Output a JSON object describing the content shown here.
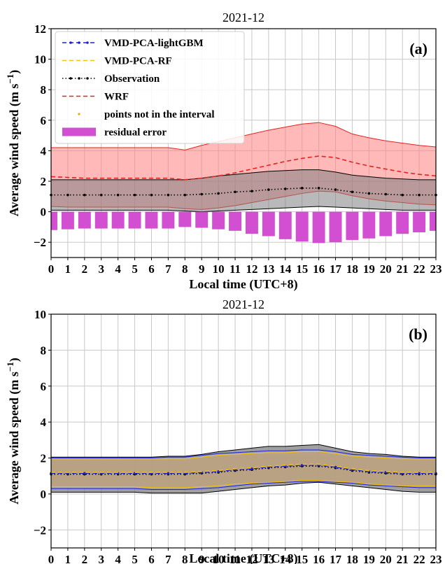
{
  "chart_data": [
    {
      "type": "line",
      "panel_label": "(a)",
      "title": "2021-12",
      "xlabel": "Local time (UTC+8)",
      "ylabel": "Average wind speed (m s",
      "ylabel_sup": "−1",
      "ylabel_tail": ")",
      "xlim": [
        0,
        23
      ],
      "ylim": [
        -3,
        12
      ],
      "yticks": [
        -2,
        0,
        2,
        4,
        6,
        8,
        10,
        12
      ],
      "x": [
        0,
        1,
        2,
        3,
        4,
        5,
        6,
        7,
        8,
        9,
        10,
        11,
        12,
        13,
        14,
        15,
        16,
        17,
        18,
        19,
        20,
        21,
        22,
        23
      ],
      "x_ticklabels": [
        "0",
        "1",
        "2",
        "3",
        "4",
        "5",
        "6",
        "7",
        "8",
        "9",
        "10",
        "11",
        "12",
        "13",
        "14",
        "15",
        "16",
        "17",
        "18",
        "19",
        "20",
        "21",
        "22",
        "23"
      ],
      "grid": true,
      "legend": {
        "placement": "top-left",
        "entries": [
          {
            "label": "VMD-PCA-lightGBM",
            "color": "#1f1fd6",
            "style": "dashed-marker"
          },
          {
            "label": "VMD-PCA-RF",
            "color": "#f5c400",
            "style": "dashed"
          },
          {
            "label": "Observation",
            "color": "#000000",
            "style": "dotted-marker"
          },
          {
            "label": "WRF",
            "color": "#e8211d",
            "style": "dashed"
          },
          {
            "label": "points not in the interval",
            "color": "#f5a300",
            "style": "point"
          },
          {
            "label": "residual error",
            "color": "#d24fd2",
            "style": "bar"
          }
        ]
      },
      "series": [
        {
          "name": "Observation",
          "color": "#000000",
          "values": [
            1.1,
            1.1,
            1.1,
            1.1,
            1.1,
            1.1,
            1.1,
            1.1,
            1.1,
            1.15,
            1.2,
            1.3,
            1.35,
            1.45,
            1.5,
            1.55,
            1.55,
            1.45,
            1.3,
            1.2,
            1.15,
            1.1,
            1.1,
            1.1
          ]
        },
        {
          "name": "WRF",
          "color": "#e8211d",
          "values": [
            2.3,
            2.25,
            2.2,
            2.2,
            2.2,
            2.2,
            2.2,
            2.2,
            2.1,
            2.2,
            2.35,
            2.55,
            2.8,
            3.05,
            3.3,
            3.5,
            3.65,
            3.55,
            3.25,
            3.0,
            2.8,
            2.6,
            2.45,
            2.35
          ]
        }
      ],
      "bands": [
        {
          "name": "WRF interval",
          "color": "#ff7f7f",
          "lower": [
            0.35,
            0.3,
            0.3,
            0.3,
            0.3,
            0.3,
            0.3,
            0.3,
            0.2,
            0.15,
            0.25,
            0.4,
            0.6,
            0.8,
            1.0,
            1.2,
            1.35,
            1.3,
            1.05,
            0.85,
            0.7,
            0.6,
            0.5,
            0.45
          ],
          "upper": [
            4.2,
            4.2,
            4.2,
            4.2,
            4.2,
            4.2,
            4.2,
            4.2,
            4.05,
            4.35,
            4.6,
            4.85,
            5.1,
            5.35,
            5.55,
            5.75,
            5.85,
            5.6,
            5.1,
            4.85,
            4.65,
            4.5,
            4.35,
            4.25
          ]
        },
        {
          "name": "Observation interval",
          "color": "#808080",
          "lower": [
            0.1,
            0.1,
            0.1,
            0.1,
            0.1,
            0.1,
            0.1,
            0.1,
            0.05,
            0.0,
            0.05,
            0.1,
            0.15,
            0.2,
            0.25,
            0.3,
            0.35,
            0.3,
            0.25,
            0.2,
            0.15,
            0.1,
            0.1,
            0.1
          ],
          "upper": [
            2.1,
            2.1,
            2.1,
            2.1,
            2.1,
            2.1,
            2.1,
            2.1,
            2.1,
            2.2,
            2.35,
            2.45,
            2.55,
            2.65,
            2.7,
            2.75,
            2.75,
            2.6,
            2.4,
            2.3,
            2.2,
            2.15,
            2.1,
            2.1
          ]
        }
      ],
      "residual_error": [
        -1.2,
        -1.15,
        -1.1,
        -1.1,
        -1.1,
        -1.1,
        -1.1,
        -1.1,
        -1.0,
        -1.05,
        -1.15,
        -1.25,
        -1.45,
        -1.6,
        -1.8,
        -1.95,
        -2.05,
        -2.0,
        -1.85,
        -1.75,
        -1.6,
        -1.45,
        -1.35,
        -1.25
      ]
    },
    {
      "type": "line",
      "panel_label": "(b)",
      "title": "2021-12",
      "xlabel": "Local time (UTC+8)",
      "ylabel": "Average wind speed (m s",
      "ylabel_sup": "−1",
      "ylabel_tail": ")",
      "xlim": [
        0,
        23
      ],
      "ylim": [
        -3,
        10
      ],
      "yticks": [
        -2,
        0,
        2,
        4,
        6,
        8,
        10
      ],
      "x": [
        0,
        1,
        2,
        3,
        4,
        5,
        6,
        7,
        8,
        9,
        10,
        11,
        12,
        13,
        14,
        15,
        16,
        17,
        18,
        19,
        20,
        21,
        22,
        23
      ],
      "x_ticklabels": [
        "0",
        "1",
        "2",
        "3",
        "4",
        "5",
        "6",
        "7",
        "8",
        "9",
        "10",
        "11",
        "12",
        "13",
        "14",
        "15",
        "16",
        "17",
        "18",
        "19",
        "20",
        "21",
        "22",
        "23"
      ],
      "grid": true,
      "series": [
        {
          "name": "Observation",
          "color": "#000000",
          "values": [
            1.1,
            1.1,
            1.1,
            1.1,
            1.1,
            1.1,
            1.1,
            1.1,
            1.1,
            1.15,
            1.2,
            1.3,
            1.35,
            1.45,
            1.5,
            1.55,
            1.55,
            1.45,
            1.3,
            1.2,
            1.15,
            1.1,
            1.1,
            1.1
          ]
        },
        {
          "name": "VMD-PCA-lightGBM",
          "color": "#1f1fd6",
          "values": [
            1.15,
            1.15,
            1.15,
            1.15,
            1.15,
            1.15,
            1.15,
            1.15,
            1.15,
            1.2,
            1.25,
            1.35,
            1.4,
            1.5,
            1.55,
            1.6,
            1.6,
            1.5,
            1.35,
            1.25,
            1.2,
            1.15,
            1.15,
            1.15
          ]
        },
        {
          "name": "VMD-PCA-RF",
          "color": "#f5c400",
          "values": [
            1.2,
            1.2,
            1.2,
            1.2,
            1.2,
            1.2,
            1.2,
            1.2,
            1.2,
            1.25,
            1.3,
            1.4,
            1.45,
            1.55,
            1.6,
            1.65,
            1.65,
            1.55,
            1.4,
            1.3,
            1.25,
            1.2,
            1.2,
            1.2
          ]
        }
      ],
      "bands": [
        {
          "name": "Observation interval",
          "color": "#808080",
          "edge": "#000000",
          "lower": [
            0.1,
            0.1,
            0.1,
            0.1,
            0.1,
            0.1,
            0.05,
            0.05,
            0.05,
            0.05,
            0.15,
            0.25,
            0.35,
            0.45,
            0.5,
            0.6,
            0.65,
            0.55,
            0.45,
            0.35,
            0.25,
            0.15,
            0.1,
            0.1
          ],
          "upper": [
            2.05,
            2.05,
            2.05,
            2.05,
            2.05,
            2.05,
            2.05,
            2.1,
            2.1,
            2.2,
            2.35,
            2.45,
            2.55,
            2.65,
            2.65,
            2.7,
            2.75,
            2.55,
            2.35,
            2.25,
            2.2,
            2.1,
            2.05,
            2.05
          ]
        },
        {
          "name": "VMD-PCA-lightGBM interval",
          "color": "#9da0cc",
          "edge": "#1f1fd6",
          "lower": [
            0.3,
            0.3,
            0.3,
            0.3,
            0.3,
            0.3,
            0.25,
            0.25,
            0.25,
            0.3,
            0.35,
            0.45,
            0.55,
            0.6,
            0.65,
            0.7,
            0.7,
            0.65,
            0.6,
            0.5,
            0.45,
            0.4,
            0.35,
            0.35
          ],
          "upper": [
            2.0,
            2.0,
            2.0,
            2.0,
            2.0,
            2.0,
            2.0,
            2.05,
            2.05,
            2.15,
            2.25,
            2.3,
            2.35,
            2.4,
            2.4,
            2.45,
            2.45,
            2.35,
            2.2,
            2.15,
            2.1,
            2.05,
            2.0,
            2.0
          ]
        },
        {
          "name": "VMD-PCA-RF interval",
          "color": "#c2a36e",
          "edge": "#f5c400",
          "lower": [
            0.4,
            0.4,
            0.4,
            0.4,
            0.4,
            0.4,
            0.35,
            0.35,
            0.35,
            0.4,
            0.45,
            0.55,
            0.6,
            0.65,
            0.7,
            0.75,
            0.75,
            0.7,
            0.65,
            0.55,
            0.5,
            0.45,
            0.45,
            0.45
          ],
          "upper": [
            1.95,
            1.95,
            1.95,
            1.95,
            1.95,
            1.95,
            1.95,
            1.95,
            1.95,
            2.05,
            2.15,
            2.2,
            2.25,
            2.3,
            2.3,
            2.35,
            2.35,
            2.25,
            2.1,
            2.05,
            2.0,
            1.95,
            1.95,
            1.95
          ]
        }
      ]
    }
  ]
}
